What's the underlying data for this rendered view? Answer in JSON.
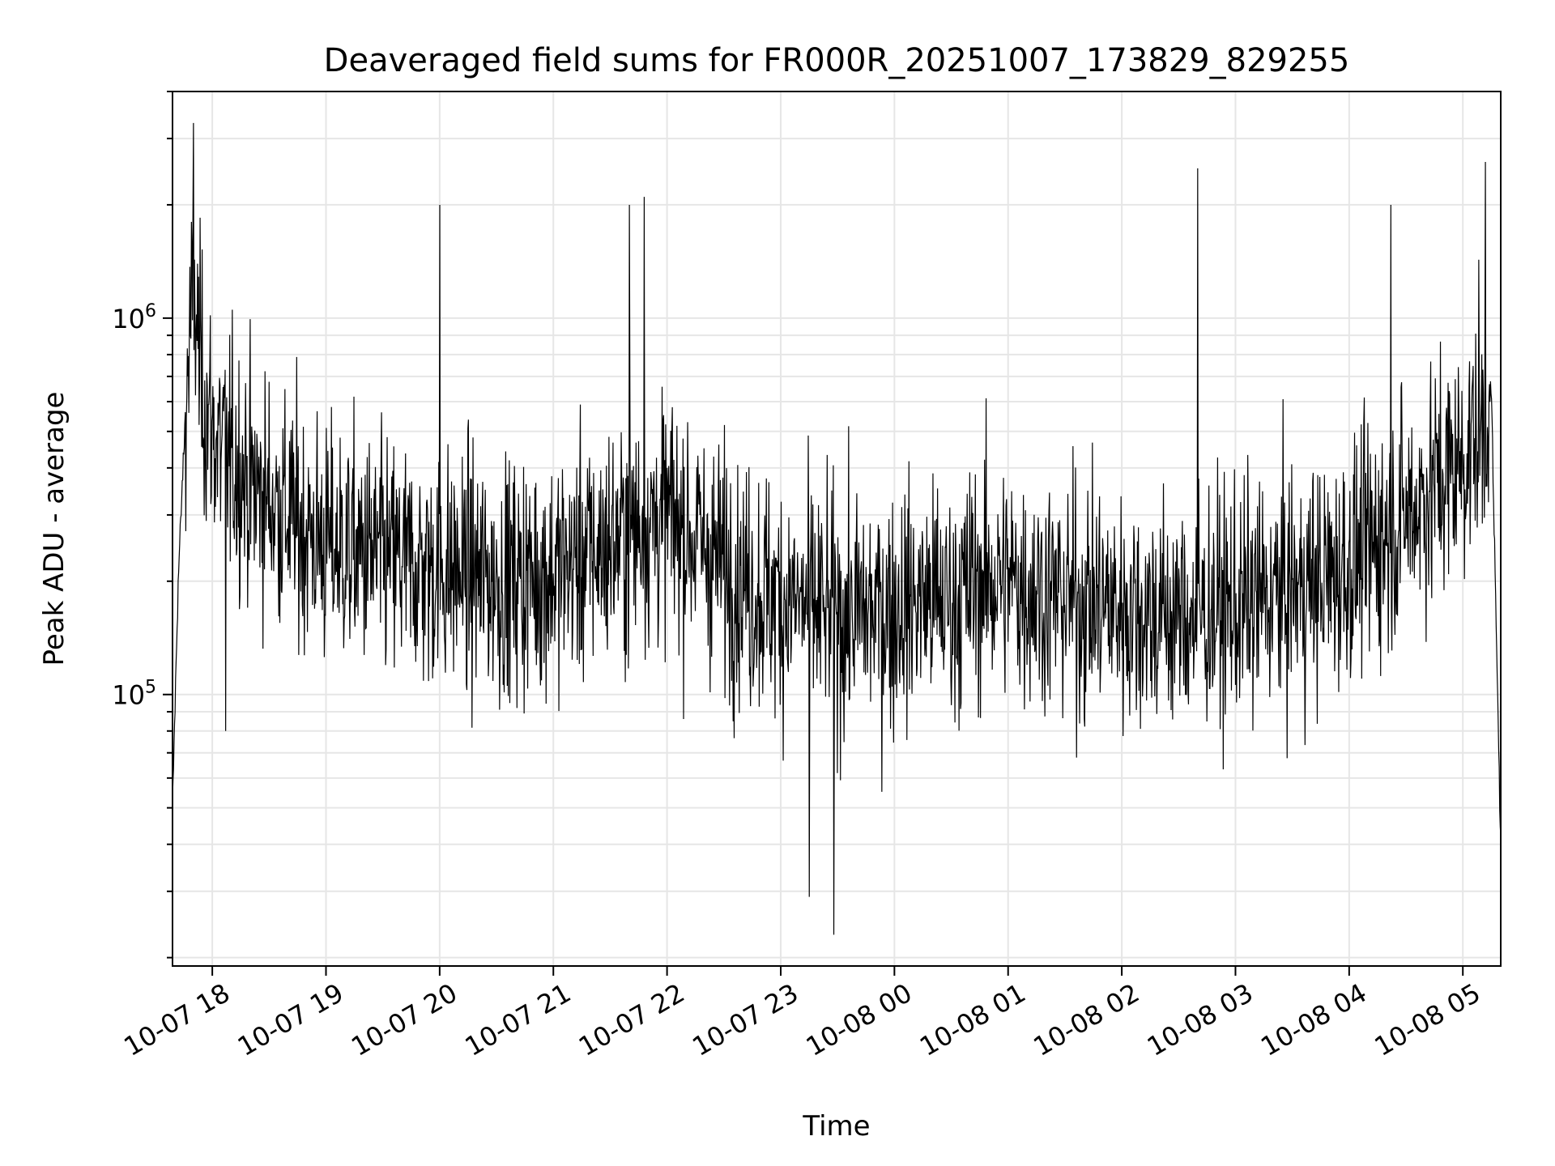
{
  "chart_data": {
    "type": "line",
    "title": "Deaveraged field sums for FR000R_20251007_173829_829255",
    "xlabel": "Time",
    "ylabel": "Peak ADU - average",
    "y_scale": "log",
    "ylim": [
      19000,
      4000000
    ],
    "xlim": [
      "2025-10-07 17:39",
      "2025-10-08 05:20"
    ],
    "x_ticks": [
      "10-07 18",
      "10-07 19",
      "10-07 20",
      "10-07 21",
      "10-07 22",
      "10-07 23",
      "10-08 00",
      "10-08 01",
      "10-08 02",
      "10-08 03",
      "10-08 04",
      "10-08 05"
    ],
    "y_ticks": [
      {
        "value": 100000,
        "base": "10",
        "exp": "5"
      },
      {
        "value": 1000000,
        "base": "10",
        "exp": "6"
      }
    ],
    "grid": true,
    "line_color": "#000000",
    "grid_color": "#e6e6e6",
    "series": [
      {
        "x": [
          "2025-10-07 17:39",
          "2025-10-07 17:42",
          "2025-10-07 17:45",
          "2025-10-07 17:48",
          "2025-10-07 17:51",
          "2025-10-07 17:53",
          "2025-10-07 17:56",
          "2025-10-07 18:00",
          "2025-10-07 18:05",
          "2025-10-07 18:10",
          "2025-10-07 18:15",
          "2025-10-07 18:20",
          "2025-10-07 18:30",
          "2025-10-07 18:40",
          "2025-10-07 18:50",
          "2025-10-07 19:00",
          "2025-10-07 19:15",
          "2025-10-07 19:30",
          "2025-10-07 19:45",
          "2025-10-07 20:00",
          "2025-10-07 20:15",
          "2025-10-07 20:30",
          "2025-10-07 20:45",
          "2025-10-07 21:00",
          "2025-10-07 21:15",
          "2025-10-07 21:30",
          "2025-10-07 21:45",
          "2025-10-07 22:00",
          "2025-10-07 22:15",
          "2025-10-07 22:30",
          "2025-10-07 22:45",
          "2025-10-07 23:00",
          "2025-10-07 23:15",
          "2025-10-07 23:30",
          "2025-10-07 23:45",
          "2025-10-08 00:00",
          "2025-10-08 00:15",
          "2025-10-08 00:30",
          "2025-10-08 00:45",
          "2025-10-08 01:00",
          "2025-10-08 01:15",
          "2025-10-08 01:30",
          "2025-10-08 01:45",
          "2025-10-08 02:00",
          "2025-10-08 02:15",
          "2025-10-08 02:30",
          "2025-10-08 02:45",
          "2025-10-08 03:00",
          "2025-10-08 03:15",
          "2025-10-08 03:30",
          "2025-10-08 03:45",
          "2025-10-08 04:00",
          "2025-10-08 04:15",
          "2025-10-08 04:30",
          "2025-10-08 04:45",
          "2025-10-08 05:00",
          "2025-10-08 05:10",
          "2025-10-08 05:15",
          "2025-10-08 05:18",
          "2025-10-08 05:20"
        ],
        "base": [
          50000,
          200000,
          450000,
          900000,
          1100000,
          800000,
          600000,
          500000,
          450000,
          420000,
          400000,
          360000,
          330000,
          300000,
          270000,
          250000,
          240000,
          230000,
          220000,
          215000,
          210000,
          200000,
          205000,
          210000,
          230000,
          250000,
          280000,
          300000,
          260000,
          220000,
          190000,
          180000,
          170000,
          160000,
          165000,
          170000,
          180000,
          175000,
          200000,
          200000,
          190000,
          180000,
          175000,
          170000,
          165000,
          160000,
          165000,
          170000,
          180000,
          190000,
          200000,
          220000,
          260000,
          300000,
          360000,
          420000,
          520000,
          650000,
          120000,
          40000
        ],
        "peaks": [
          {
            "x": "2025-10-07 17:50",
            "y": 3300000
          },
          {
            "x": "2025-10-07 20:00",
            "y": 2000000
          },
          {
            "x": "2025-10-07 21:40",
            "y": 2000000
          },
          {
            "x": "2025-10-07 21:48",
            "y": 2100000
          },
          {
            "x": "2025-10-08 02:40",
            "y": 2500000
          },
          {
            "x": "2025-10-08 04:22",
            "y": 2000000
          },
          {
            "x": "2025-10-08 05:12",
            "y": 2600000
          }
        ],
        "dips": [
          {
            "x": "2025-10-07 18:07",
            "y": 80000
          },
          {
            "x": "2025-10-07 23:28",
            "y": 23000
          },
          {
            "x": "2025-10-07 23:15",
            "y": 29000
          }
        ]
      }
    ]
  }
}
